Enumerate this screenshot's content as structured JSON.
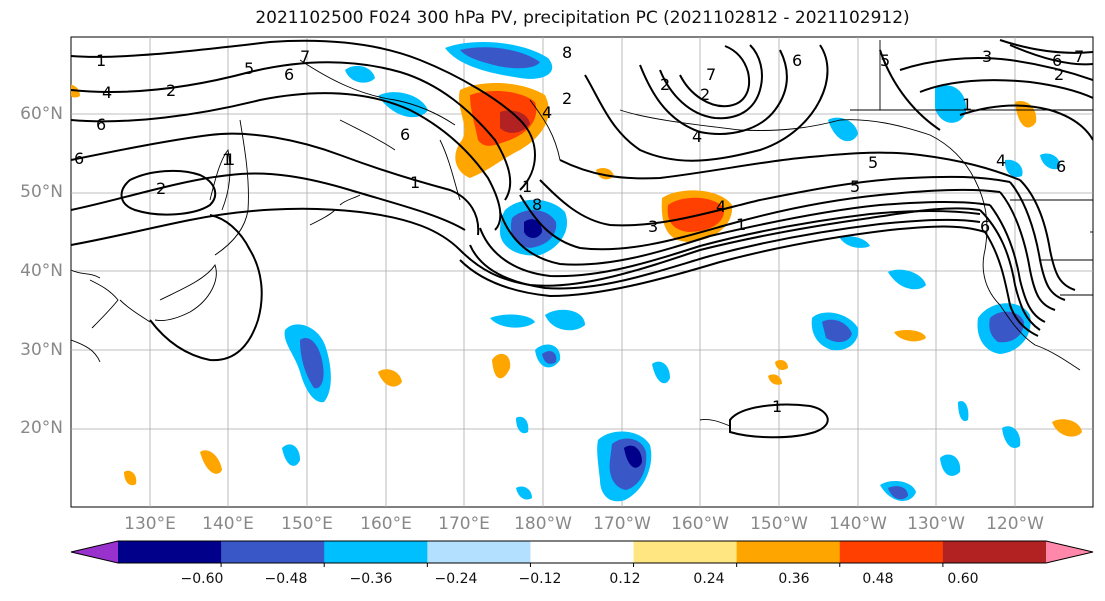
{
  "title": "2021102500 F024 300 hPa PV, precipitation PC (2021102812 - 2021102912)",
  "lat_labels": [
    "60°N",
    "50°N",
    "40°N",
    "30°N",
    "20°N"
  ],
  "lon_labels": [
    "130°E",
    "140°E",
    "150°E",
    "160°E",
    "170°E",
    "180°W",
    "170°W",
    "160°W",
    "150°W",
    "140°W",
    "130°W",
    "120°W"
  ],
  "colorbar": {
    "colors": [
      "#9932CC",
      "#00008B",
      "#3A57C8",
      "#00BFFF",
      "#B3E0FF",
      "#FFFFFF",
      "#FFE680",
      "#FFA500",
      "#FF4000",
      "#B22222",
      "#FF88AA"
    ],
    "ticks": [
      "−0.60",
      "−0.48",
      "−0.36",
      "−0.24",
      "−0.12",
      "0.12",
      "0.24",
      "0.36",
      "0.48",
      "0.60"
    ]
  },
  "contour_labels": [
    "1",
    "2",
    "4",
    "6",
    "5",
    "6",
    "7",
    "2",
    "1",
    "8",
    "8",
    "6",
    "2",
    "4",
    "7",
    "6",
    "5",
    "1",
    "3",
    "4",
    "1",
    "5",
    "6",
    "1",
    "6",
    "2",
    "5",
    "3",
    "6",
    "7",
    "2",
    "4",
    "1",
    "4",
    "6",
    "1",
    "2",
    "1"
  ]
}
